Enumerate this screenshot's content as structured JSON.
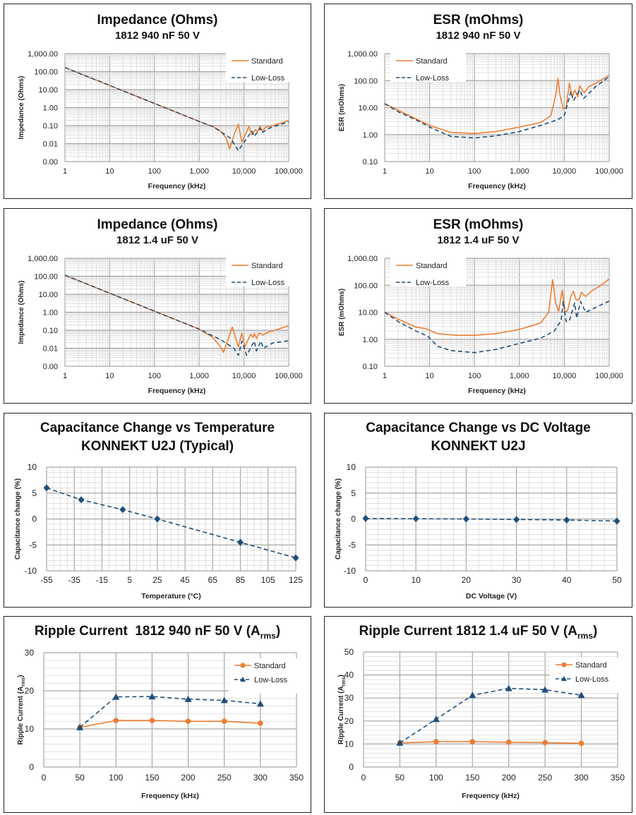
{
  "colors": {
    "standard": "#ED7D31",
    "low_loss": "#1F4E79",
    "grid_major": "#a6a6a6",
    "grid_minor": "#d9d9d9"
  },
  "chart_data": [
    {
      "type": "line",
      "title": "Impedance (Ohms)",
      "subtitle": "1812 940 nF 50 V",
      "xlabel": "Frequency (kHz)",
      "ylabel": "Impedance (Ohms)",
      "xscale": "log",
      "yscale": "log",
      "xlim": [
        1,
        100000
      ],
      "ylim": [
        0.001,
        1000
      ],
      "grid": true,
      "legend": "top-right",
      "xticks": [
        1,
        10,
        100,
        1000,
        10000,
        100000
      ],
      "xtick_labels": [
        "1",
        "10",
        "100",
        "1,000",
        "10,000",
        "100,000"
      ],
      "yticks": [
        0.001,
        0.01,
        0.1,
        1,
        10,
        100,
        1000
      ],
      "ytick_labels": [
        "0.00",
        "0.01",
        "0.10",
        "1.00",
        "10.00",
        "100.00",
        "1,000.00"
      ],
      "series": [
        {
          "name": "Standard",
          "style": "solid",
          "x": [
            1,
            10,
            100,
            1000,
            2000,
            3000,
            4000,
            4800,
            6000,
            7500,
            9000,
            13000,
            15000,
            18000,
            20000,
            23000,
            26000,
            30000,
            50000,
            100000
          ],
          "y": [
            169,
            17,
            1.7,
            0.17,
            0.09,
            0.05,
            0.02,
            0.005,
            0.03,
            0.12,
            0.012,
            0.09,
            0.03,
            0.06,
            0.045,
            0.09,
            0.05,
            0.08,
            0.11,
            0.19
          ]
        },
        {
          "name": "Low-Loss",
          "style": "dashed",
          "x": [
            1,
            10,
            100,
            1000,
            2000,
            5000,
            7500,
            9000,
            15000,
            17000,
            23000,
            25000,
            40000,
            100000
          ],
          "y": [
            169,
            17,
            1.7,
            0.17,
            0.09,
            0.02,
            0.004,
            0.008,
            0.05,
            0.025,
            0.07,
            0.04,
            0.08,
            0.16
          ]
        }
      ]
    },
    {
      "type": "line",
      "title": "ESR (mOhms)",
      "subtitle": "1812 940 nF 50 V",
      "xlabel": "Frequency (kHz)",
      "ylabel": "ESR (mOhms)",
      "xscale": "log",
      "yscale": "log",
      "xlim": [
        1,
        100000
      ],
      "ylim": [
        0.1,
        1000
      ],
      "grid": true,
      "legend": "top-left",
      "xticks": [
        1,
        10,
        100,
        1000,
        10000,
        100000
      ],
      "xtick_labels": [
        "1",
        "10",
        "100",
        "1,000",
        "10,000",
        "100,000"
      ],
      "yticks": [
        0.1,
        1,
        10,
        100,
        1000
      ],
      "ytick_labels": [
        "0.10",
        "1.00",
        "10.00",
        "100.00",
        "1,000.00"
      ],
      "series": [
        {
          "name": "Standard",
          "style": "solid",
          "x": [
            1,
            2,
            5,
            10,
            30,
            100,
            300,
            1000,
            3000,
            5000,
            6500,
            7200,
            8000,
            9500,
            11000,
            13000,
            15000,
            17000,
            20000,
            22000,
            28000,
            35000,
            50000,
            100000
          ],
          "y": [
            14,
            8,
            3.8,
            2.2,
            1.2,
            1.1,
            1.3,
            1.9,
            2.8,
            5,
            30,
            120,
            30,
            9,
            10,
            80,
            25,
            45,
            25,
            65,
            35,
            60,
            80,
            160
          ]
        },
        {
          "name": "Low-Loss",
          "style": "dashed",
          "x": [
            1,
            2,
            5,
            10,
            30,
            100,
            300,
            1000,
            3000,
            7000,
            10000,
            14000,
            16000,
            22000,
            27000,
            50000,
            100000
          ],
          "y": [
            14,
            7,
            3.5,
            1.9,
            0.85,
            0.75,
            0.9,
            1.3,
            2.2,
            3.5,
            5,
            40,
            18,
            45,
            22,
            60,
            140
          ]
        }
      ]
    },
    {
      "type": "line",
      "title": "Impedance (Ohms)",
      "subtitle": "1812 1.4 uF 50 V",
      "xlabel": "Frequency (kHz)",
      "ylabel": "Impedance (Ohms)",
      "xscale": "log",
      "yscale": "log",
      "xlim": [
        1,
        100000
      ],
      "ylim": [
        0.001,
        1000
      ],
      "grid": true,
      "legend": "top-right",
      "xticks": [
        1,
        10,
        100,
        1000,
        10000,
        100000
      ],
      "xtick_labels": [
        "1",
        "10",
        "100",
        "1,000",
        "10,000",
        "100,000"
      ],
      "yticks": [
        0.001,
        0.01,
        0.1,
        1,
        10,
        100,
        1000
      ],
      "ytick_labels": [
        "0.00",
        "0.01",
        "0.10",
        "1.00",
        "10.00",
        "100.00",
        "1,000.00"
      ],
      "series": [
        {
          "name": "Standard",
          "style": "solid",
          "x": [
            1,
            10,
            100,
            1000,
            2000,
            3000,
            3500,
            5500,
            7500,
            9000,
            10500,
            14000,
            16000,
            17000,
            19000,
            22000,
            27000,
            35000,
            50000,
            100000
          ],
          "y": [
            114,
            11.4,
            1.14,
            0.114,
            0.04,
            0.012,
            0.006,
            0.15,
            0.012,
            0.07,
            0.012,
            0.06,
            0.04,
            0.065,
            0.035,
            0.07,
            0.055,
            0.08,
            0.1,
            0.18
          ]
        },
        {
          "name": "Low-Loss",
          "style": "dashed",
          "x": [
            1,
            10,
            100,
            1000,
            3000,
            6000,
            7500,
            9000,
            11500,
            17000,
            19000,
            24000,
            27000,
            45000,
            100000
          ],
          "y": [
            114,
            11.4,
            1.14,
            0.114,
            0.03,
            0.01,
            0.004,
            0.025,
            0.004,
            0.025,
            0.007,
            0.025,
            0.01,
            0.02,
            0.026
          ]
        }
      ]
    },
    {
      "type": "line",
      "title": "ESR (mOhms)",
      "subtitle": "1812 1.4 uF 50 V",
      "xlabel": "Frequency (kHz)",
      "ylabel": "ESR (mOhms)",
      "xscale": "log",
      "yscale": "log",
      "xlim": [
        1,
        100000
      ],
      "ylim": [
        0.1,
        1000
      ],
      "grid": true,
      "legend": "top-left",
      "xticks": [
        1,
        10,
        100,
        1000,
        10000,
        100000
      ],
      "xtick_labels": [
        "1",
        "10",
        "100",
        "1,000",
        "10,000",
        "100,000"
      ],
      "yticks": [
        0.1,
        1,
        10,
        100,
        1000
      ],
      "ytick_labels": [
        "0.10",
        "1.00",
        "10.00",
        "100.00",
        "1,000.00"
      ],
      "series": [
        {
          "name": "Standard",
          "style": "solid",
          "x": [
            1,
            2,
            5,
            8,
            15,
            40,
            100,
            300,
            1000,
            3000,
            4500,
            5500,
            6500,
            7500,
            9000,
            10500,
            12000,
            14000,
            16000,
            18000,
            21000,
            24000,
            30000,
            40000,
            60000,
            100000
          ],
          "y": [
            10,
            5.5,
            2.8,
            2.5,
            1.6,
            1.4,
            1.4,
            1.6,
            2.3,
            4,
            10,
            160,
            20,
            11,
            65,
            10,
            12,
            40,
            60,
            30,
            28,
            55,
            38,
            60,
            90,
            170
          ]
        },
        {
          "name": "Low-Loss",
          "style": "dashed",
          "x": [
            1,
            2,
            5,
            9,
            15,
            30,
            100,
            300,
            1000,
            3000,
            6000,
            8500,
            9500,
            11000,
            13000,
            17000,
            19000,
            23000,
            30000,
            50000,
            100000
          ],
          "y": [
            10,
            4.5,
            2,
            1.3,
            0.55,
            0.38,
            0.32,
            0.42,
            0.7,
            1.1,
            2,
            5,
            25,
            4.5,
            4.8,
            22,
            6,
            25,
            10,
            15,
            26
          ]
        }
      ]
    },
    {
      "type": "line",
      "title": "Capacitance Change vs Temperature",
      "subtitle": "KONNEKT U2J (Typical)",
      "xlabel": "Temperature (°C)",
      "ylabel": "Capacitance change  (%)",
      "xscale": "linear",
      "yscale": "linear",
      "xlim": [
        -55,
        125
      ],
      "ylim": [
        -10,
        10
      ],
      "grid": true,
      "legend": "none",
      "xticks": [
        -55,
        -35,
        -15,
        5,
        25,
        45,
        65,
        85,
        105,
        125
      ],
      "xtick_labels": [
        "-55",
        "-35",
        "-15",
        "5",
        "25",
        "45",
        "65",
        "85",
        "105",
        "125"
      ],
      "yticks": [
        -10,
        -5,
        0,
        5,
        10
      ],
      "ytick_labels": [
        "-10",
        "-5",
        "0",
        "5",
        "10"
      ],
      "series": [
        {
          "style": "dashed",
          "marker": "diamond",
          "x": [
            -55,
            -30,
            0,
            25,
            85,
            125
          ],
          "y": [
            6,
            3.7,
            1.8,
            0,
            -4.5,
            -7.5
          ]
        }
      ]
    },
    {
      "type": "line",
      "title": "Capacitance Change vs DC Voltage",
      "subtitle": "KONNEKT U2J",
      "xlabel": "DC Voltage (V)",
      "ylabel": "Capacitance change (%)",
      "xscale": "linear",
      "yscale": "linear",
      "xlim": [
        0,
        50
      ],
      "ylim": [
        -10,
        10
      ],
      "grid": true,
      "legend": "none",
      "xticks": [
        0,
        10,
        20,
        30,
        40,
        50
      ],
      "xtick_labels": [
        "0",
        "10",
        "20",
        "30",
        "40",
        "50"
      ],
      "yticks": [
        -10,
        -5,
        0,
        5,
        10
      ],
      "ytick_labels": [
        "-10",
        "-5",
        "0",
        "5",
        "10"
      ],
      "series": [
        {
          "style": "dashed",
          "marker": "diamond",
          "x": [
            0,
            10,
            20,
            30,
            40,
            50
          ],
          "y": [
            0.1,
            0.05,
            0,
            -0.1,
            -0.2,
            -0.4
          ]
        }
      ]
    },
    {
      "type": "line",
      "title": "Ripple Current  1812 940 nF 50 V (A",
      "title_sub": "rms",
      "title_end": ")",
      "xlabel": "Frequency (kHz)",
      "ylabel": "Ripple Current (A",
      "ylabel_sub": "rms",
      "ylabel_end": ")",
      "xscale": "linear",
      "yscale": "linear",
      "xlim": [
        0,
        350
      ],
      "ylim": [
        0,
        30
      ],
      "grid": true,
      "legend": "top-right",
      "xticks": [
        0,
        50,
        100,
        150,
        200,
        250,
        300,
        350
      ],
      "xtick_labels": [
        "0",
        "50",
        "100",
        "150",
        "200",
        "250",
        "300",
        "350"
      ],
      "yticks": [
        0,
        10,
        20,
        30
      ],
      "ytick_labels": [
        "0",
        "10",
        "20",
        "30"
      ],
      "series": [
        {
          "name": "Standard",
          "style": "solid",
          "marker": "circle",
          "x": [
            50,
            100,
            150,
            200,
            250,
            300
          ],
          "y": [
            10.4,
            12.2,
            12.2,
            12,
            12,
            11.5
          ]
        },
        {
          "name": "Low-Loss",
          "style": "dashed",
          "marker": "triangle",
          "x": [
            50,
            100,
            150,
            200,
            250,
            300
          ],
          "y": [
            10.4,
            18.4,
            18.5,
            17.8,
            17.5,
            16.6
          ]
        }
      ]
    },
    {
      "type": "line",
      "title": "Ripple Current 1812 1.4 uF 50 V (A",
      "title_sub": "rms",
      "title_end": ")",
      "xlabel": "Frequency (kHz)",
      "ylabel": "Ripple Current (A",
      "ylabel_sub": "rms",
      "ylabel_end": ")",
      "xscale": "linear",
      "yscale": "linear",
      "xlim": [
        0,
        350
      ],
      "ylim": [
        0,
        50
      ],
      "grid": true,
      "legend": "top-right",
      "xticks": [
        0,
        50,
        100,
        150,
        200,
        250,
        300,
        350
      ],
      "xtick_labels": [
        "0",
        "50",
        "100",
        "150",
        "200",
        "250",
        "300",
        "350"
      ],
      "yticks": [
        0,
        10,
        20,
        30,
        40,
        50
      ],
      "ytick_labels": [
        "0",
        "10",
        "20",
        "30",
        "40",
        "50"
      ],
      "series": [
        {
          "name": "Standard",
          "style": "solid",
          "marker": "circle",
          "x": [
            50,
            100,
            150,
            200,
            250,
            300
          ],
          "y": [
            10.5,
            11,
            11,
            10.8,
            10.6,
            10.3
          ]
        },
        {
          "name": "Low-Loss",
          "style": "dashed",
          "marker": "triangle",
          "x": [
            50,
            100,
            150,
            200,
            250,
            300
          ],
          "y": [
            10.5,
            20.8,
            31.2,
            34.2,
            33.6,
            31.2
          ]
        }
      ]
    }
  ]
}
